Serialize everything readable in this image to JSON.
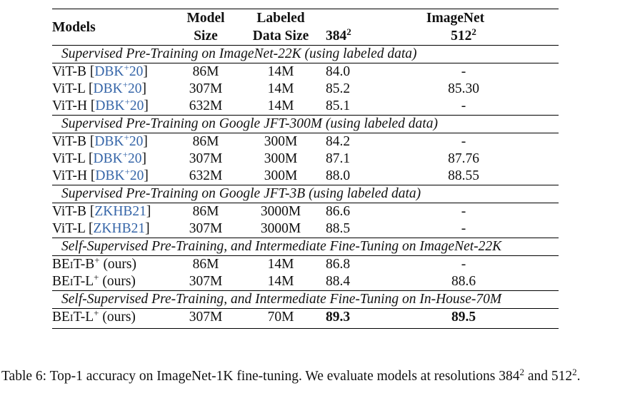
{
  "header": {
    "models": "Models",
    "model_size_1": "Model",
    "model_size_2": "Size",
    "labeled_1": "Labeled",
    "labeled_2": "Data Size",
    "imagenet": "ImageNet",
    "res_384": "384",
    "res_512": "512",
    "res_exp": "2"
  },
  "sections": [
    {
      "title": "Supervised Pre-Training on ImageNet-22K (using labeled data)",
      "rows": [
        {
          "model": "ViT-B",
          "cite": "DBK",
          "cite_sup": "+",
          "cite_year": "20",
          "size": "86M",
          "data": "14M",
          "r384": "84.0",
          "r512": "-"
        },
        {
          "model": "ViT-L",
          "cite": "DBK",
          "cite_sup": "+",
          "cite_year": "20",
          "size": "307M",
          "data": "14M",
          "r384": "85.2",
          "r512": "85.30"
        },
        {
          "model": "ViT-H",
          "cite": "DBK",
          "cite_sup": "+",
          "cite_year": "20",
          "size": "632M",
          "data": "14M",
          "r384": "85.1",
          "r512": "-"
        }
      ]
    },
    {
      "title": "Supervised Pre-Training on Google JFT-300M (using labeled data)",
      "rows": [
        {
          "model": "ViT-B",
          "cite": "DBK",
          "cite_sup": "+",
          "cite_year": "20",
          "size": "86M",
          "data": "300M",
          "r384": "84.2",
          "r512": "-"
        },
        {
          "model": "ViT-L",
          "cite": "DBK",
          "cite_sup": "+",
          "cite_year": "20",
          "size": "307M",
          "data": "300M",
          "r384": "87.1",
          "r512": "87.76"
        },
        {
          "model": "ViT-H",
          "cite": "DBK",
          "cite_sup": "+",
          "cite_year": "20",
          "size": "632M",
          "data": "300M",
          "r384": "88.0",
          "r512": "88.55"
        }
      ]
    },
    {
      "title": "Supervised Pre-Training on Google JFT-3B (using labeled data)",
      "rows": [
        {
          "model": "ViT-B",
          "cite": "ZKHB21",
          "size": "86M",
          "data": "3000M",
          "r384": "86.6",
          "r512": "-"
        },
        {
          "model": "ViT-L",
          "cite": "ZKHB21",
          "size": "307M",
          "data": "3000M",
          "r384": "88.5",
          "r512": "-"
        }
      ]
    },
    {
      "title": "Self-Supervised Pre-Training, and Intermediate Fine-Tuning on ImageNet-22K",
      "rows": [
        {
          "model_pre": "BE",
          "model_sc": "i",
          "model_post": "T-B",
          "model_sup": "+",
          "suffix": "(ours)",
          "size": "86M",
          "data": "14M",
          "r384": "86.8",
          "r512": "-"
        },
        {
          "model_pre": "BE",
          "model_sc": "i",
          "model_post": "T-L",
          "model_sup": "+",
          "suffix": "(ours)",
          "size": "307M",
          "data": "14M",
          "r384": "88.4",
          "r512": "88.6"
        }
      ]
    },
    {
      "title": "Self-Supervised Pre-Training, and Intermediate Fine-Tuning on In-House-70M",
      "rows": [
        {
          "model_pre": "BE",
          "model_sc": "i",
          "model_post": "T-L",
          "model_sup": "+",
          "suffix": "(ours)",
          "size": "307M",
          "data": "70M",
          "r384": "89.3",
          "r512": "89.5"
        }
      ]
    }
  ],
  "caption": {
    "prefix": "Table 6: Top-1 accuracy on ImageNet-1K fine-tuning. We evaluate models at resolutions",
    "res_a": "384",
    "exp": "2",
    "and": "and",
    "res_b": "512",
    "end": "."
  }
}
